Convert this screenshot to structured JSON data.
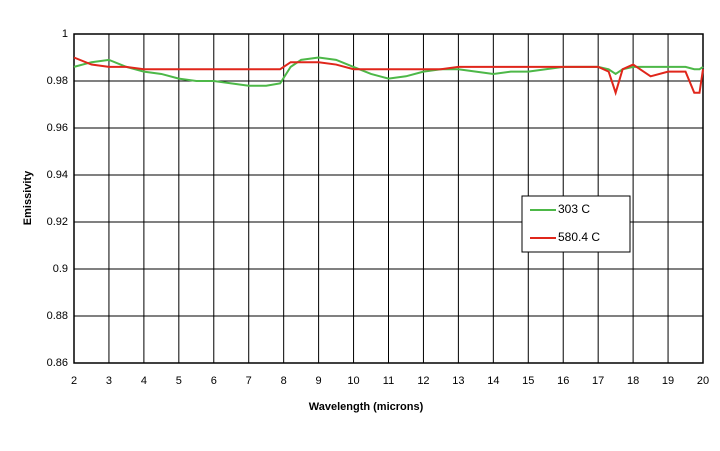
{
  "chart_data": {
    "type": "line",
    "xlabel": "Wavelength (microns)",
    "ylabel": "Emissivity",
    "x": [
      2,
      2.5,
      3,
      3.5,
      4,
      4.5,
      5,
      5.5,
      6,
      6.5,
      7,
      7.5,
      7.9,
      8.2,
      8.5,
      9,
      9.5,
      10,
      10.5,
      11,
      11.5,
      12,
      12.5,
      13,
      13.5,
      14,
      14.5,
      15,
      15.5,
      16,
      16.5,
      17,
      17.3,
      17.5,
      17.7,
      18,
      18.5,
      19,
      19.5,
      19.75,
      19.9,
      20
    ],
    "series": [
      {
        "name": "303 C",
        "color": "#4db848",
        "values": [
          0.986,
          0.988,
          0.989,
          0.986,
          0.984,
          0.983,
          0.981,
          0.98,
          0.98,
          0.979,
          0.978,
          0.978,
          0.979,
          0.986,
          0.989,
          0.99,
          0.989,
          0.986,
          0.983,
          0.981,
          0.982,
          0.984,
          0.985,
          0.985,
          0.984,
          0.983,
          0.984,
          0.984,
          0.985,
          0.986,
          0.986,
          0.986,
          0.985,
          0.983,
          0.985,
          0.986,
          0.986,
          0.986,
          0.986,
          0.985,
          0.985,
          0.986
        ]
      },
      {
        "name": "580.4 C",
        "color": "#e0261b",
        "values": [
          0.99,
          0.987,
          0.986,
          0.986,
          0.985,
          0.985,
          0.985,
          0.985,
          0.985,
          0.985,
          0.985,
          0.985,
          0.985,
          0.988,
          0.988,
          0.988,
          0.987,
          0.985,
          0.985,
          0.985,
          0.985,
          0.985,
          0.985,
          0.986,
          0.986,
          0.986,
          0.986,
          0.986,
          0.986,
          0.986,
          0.986,
          0.986,
          0.984,
          0.975,
          0.985,
          0.987,
          0.982,
          0.984,
          0.984,
          0.975,
          0.975,
          0.985
        ]
      }
    ],
    "xlim": [
      2,
      20
    ],
    "xticks": [
      2,
      3,
      4,
      5,
      6,
      7,
      8,
      9,
      10,
      11,
      12,
      13,
      14,
      15,
      16,
      17,
      18,
      19,
      20
    ],
    "ylim": [
      0.86,
      1
    ],
    "yticks": [
      0.86,
      0.88,
      0.9,
      0.92,
      0.94,
      0.96,
      0.98,
      1
    ],
    "grid": true
  }
}
